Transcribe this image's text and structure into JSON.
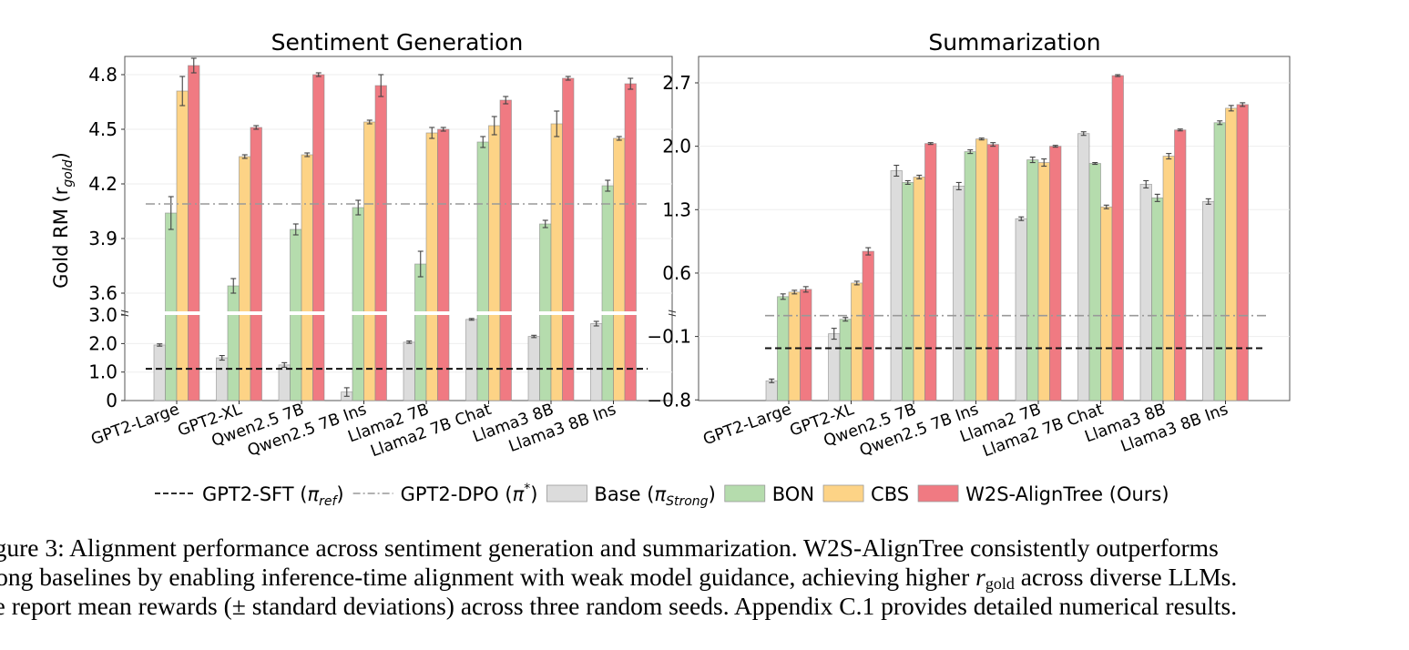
{
  "chart_data": [
    {
      "type": "bar",
      "title": "Sentiment Generation",
      "xlabel": "",
      "ylabel": "Gold RM (r_gold)",
      "broken_axis": true,
      "lower_ylim": [
        0,
        3.0
      ],
      "upper_ylim": [
        3.49,
        4.9
      ],
      "lower_yticks": [
        "0",
        "1.0",
        "2.0",
        "3.0"
      ],
      "upper_yticks": [
        "3.6",
        "3.9",
        "4.2",
        "4.5",
        "4.8"
      ],
      "lower_ytick_values": [
        0,
        1.0,
        2.0,
        3.0
      ],
      "upper_ytick_values": [
        3.6,
        3.9,
        4.2,
        4.5,
        4.8
      ],
      "grid": true,
      "categories": [
        "GPT2-Large",
        "GPT2-XL",
        "Qwen2.5 7B",
        "Qwen2.5 7B Ins",
        "Llama2 7B",
        "Llama2 7B Chat",
        "Llama3 8B",
        "Llama3 8B Ins"
      ],
      "series": [
        {
          "name": "Base (π_Strong)",
          "color": "#dcdcdc",
          "values": [
            1.95,
            1.5,
            1.25,
            0.3,
            2.05,
            2.85,
            2.25,
            2.7
          ],
          "errors": [
            0.04,
            0.08,
            0.08,
            0.15,
            0.04,
            0.03,
            0.04,
            0.08
          ]
        },
        {
          "name": "BON",
          "color": "#b5dcad",
          "values": [
            4.04,
            3.64,
            3.95,
            4.07,
            3.76,
            4.43,
            3.98,
            4.19
          ],
          "errors": [
            0.09,
            0.04,
            0.03,
            0.04,
            0.07,
            0.03,
            0.02,
            0.03
          ]
        },
        {
          "name": "CBS",
          "color": "#fdd386",
          "values": [
            4.71,
            4.35,
            4.36,
            4.54,
            4.48,
            4.52,
            4.53,
            4.45
          ],
          "errors": [
            0.08,
            0.01,
            0.01,
            0.01,
            0.03,
            0.05,
            0.07,
            0.01
          ]
        },
        {
          "name": "W2S-AlignTree (Ours)",
          "color": "#f07a82",
          "values": [
            4.85,
            4.51,
            4.8,
            4.74,
            4.5,
            4.66,
            4.78,
            4.75
          ],
          "errors": [
            0.04,
            0.01,
            0.01,
            0.06,
            0.01,
            0.02,
            0.01,
            0.03
          ]
        }
      ],
      "reference_lines": [
        {
          "name": "GPT2-SFT (π_ref)",
          "value": 1.1,
          "style": "dashed",
          "color": "#111111"
        },
        {
          "name": "GPT2-DPO (π*)",
          "value": 4.09,
          "style": "dashdot",
          "color": "#999999"
        }
      ]
    },
    {
      "type": "bar",
      "title": "Summarization",
      "xlabel": "",
      "ylabel": "",
      "ylim": [
        -0.8,
        3.0
      ],
      "yticks": [
        "−0.8",
        "−0.1",
        "0.6",
        "1.3",
        "2.0",
        "2.7"
      ],
      "ytick_values": [
        -0.8,
        -0.1,
        0.6,
        1.3,
        2.0,
        2.7
      ],
      "grid": true,
      "categories": [
        "GPT2-Large",
        "GPT2-XL",
        "Qwen2.5 7B",
        "Qwen2.5 7B Ins",
        "Llama2 7B",
        "Llama2 7B Chat",
        "Llama3 8B",
        "Llama3 8B Ins"
      ],
      "series": [
        {
          "name": "Base (π_Strong)",
          "color": "#dcdcdc",
          "values": [
            -0.59,
            -0.07,
            1.73,
            1.56,
            1.2,
            2.14,
            1.58,
            1.39
          ],
          "errors": [
            0.02,
            0.06,
            0.06,
            0.04,
            0.02,
            0.02,
            0.04,
            0.03
          ]
        },
        {
          "name": "BON",
          "color": "#b5dcad",
          "values": [
            0.34,
            0.09,
            1.6,
            1.94,
            1.85,
            1.81,
            1.43,
            2.26
          ],
          "errors": [
            0.03,
            0.02,
            0.02,
            0.02,
            0.03,
            0.01,
            0.04,
            0.02
          ]
        },
        {
          "name": "CBS",
          "color": "#fdd386",
          "values": [
            0.39,
            0.49,
            1.66,
            2.08,
            1.82,
            1.33,
            1.89,
            2.42
          ],
          "errors": [
            0.02,
            0.02,
            0.02,
            0.01,
            0.04,
            0.02,
            0.03,
            0.03
          ]
        },
        {
          "name": "W2S-AlignTree (Ours)",
          "color": "#f07a82",
          "values": [
            0.42,
            0.84,
            2.03,
            2.02,
            2.0,
            2.78,
            2.18,
            2.46
          ],
          "errors": [
            0.03,
            0.04,
            0.01,
            0.02,
            0.01,
            0.01,
            0.01,
            0.02
          ]
        }
      ],
      "reference_lines": [
        {
          "name": "GPT2-SFT (π_ref)",
          "value": -0.23,
          "style": "dashed",
          "color": "#111111"
        },
        {
          "name": "GPT2-DPO (π*)",
          "value": 0.13,
          "style": "dashdot",
          "color": "#999999"
        }
      ]
    }
  ],
  "legend": {
    "position": "bottom-center",
    "items": [
      {
        "label": "GPT2-SFT (",
        "sym": "π",
        "sub": "ref",
        "sup": "",
        "close": ")",
        "kind": "dashed",
        "color": "#111111"
      },
      {
        "label": "GPT2-DPO (",
        "sym": "π",
        "sub": "",
        "sup": "*",
        "close": ")",
        "kind": "dashdot",
        "color": "#999999"
      },
      {
        "label": "Base (",
        "sym": "π",
        "sub": "Strong",
        "sup": "",
        "close": ")",
        "kind": "patch",
        "color": "#dcdcdc"
      },
      {
        "label": "BON",
        "sym": "",
        "sub": "",
        "sup": "",
        "close": "",
        "kind": "patch",
        "color": "#b5dcad"
      },
      {
        "label": "CBS",
        "sym": "",
        "sub": "",
        "sup": "",
        "close": "",
        "kind": "patch",
        "color": "#fdd386"
      },
      {
        "label": "W2S-AlignTree (Ours)",
        "sym": "",
        "sub": "",
        "sup": "",
        "close": "",
        "kind": "patch",
        "color": "#f07a82"
      }
    ]
  },
  "ylabel_parts": {
    "main": "Gold RM (r",
    "sub": "gold",
    "close": ")"
  },
  "caption": {
    "line1": "igure 3: Alignment performance across sentiment generation and summarization. W2S-AlignTree consistently outperforms",
    "line2_a": "rong baselines by enabling inference-time alignment with weak model guidance, achieving higher ",
    "line2_r": "r",
    "line2_sub": "gold",
    "line2_b": " across diverse LLMs.",
    "line3": "/e report mean rewards (± standard deviations) across three random seeds. Appendix C.1 provides detailed numerical results."
  }
}
